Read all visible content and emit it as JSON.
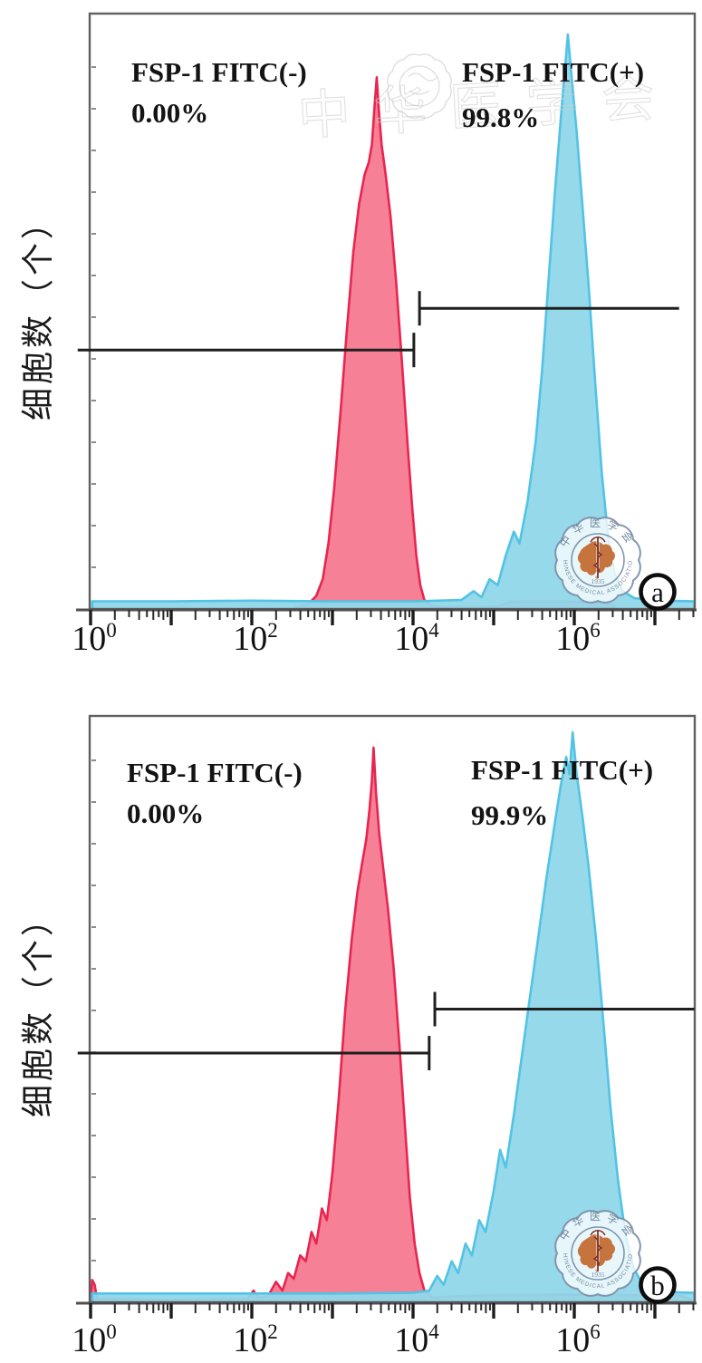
{
  "figure": {
    "background": "#ffffff"
  },
  "panels": [
    {
      "badge": "a",
      "neg_label": "FSP-1 FITC(-)",
      "neg_value": "0.00%",
      "pos_label": "FSP-1 FITC(+)",
      "pos_value": "99.8%",
      "y_axis_label": "细胞数（个）"
    },
    {
      "badge": "b",
      "neg_label": "FSP-1 FITC(-)",
      "neg_value": "0.00%",
      "pos_label": "FSP-1 FITC(+)",
      "pos_value": "99.9%",
      "y_axis_label": "细胞数（个）"
    }
  ],
  "axis": {
    "base": "10",
    "tick_exponents": [
      0,
      2,
      4,
      6
    ],
    "scale": "log10",
    "log_max": 7.49
  },
  "watermark": {
    "cn": "中华医学会",
    "en": "CHINESE MEDICAL ASSOCIATION",
    "year": "1935"
  },
  "colors": {
    "red_fill": "#F5798F",
    "red_stroke": "#E82550",
    "cyan_fill": "#8FD7EA",
    "cyan_stroke": "#52C3E4",
    "border": "#606060",
    "axis": "#4f4f4f",
    "gate": "#1f1f1f",
    "seal_ring": "#7E93AB",
    "seal_text": "#6F849B",
    "seal_map": "#C96F35",
    "seal_snake": "#7A2A1E",
    "faint": "#cfcfcf"
  },
  "chart_data": [
    {
      "type": "area",
      "panel": "a",
      "title": "",
      "xlabel": "",
      "ylabel": "细胞数（个）",
      "x_axis": {
        "scale": "log10",
        "tick_labels": [
          "10^0",
          "10^2",
          "10^4",
          "10^6"
        ],
        "range_log10": [
          0,
          7.49
        ]
      },
      "series": [
        {
          "key": "fsp1-fitc-negative",
          "name": "FSP-1 FITC(-)",
          "percent": "0.00%",
          "color_role": "red",
          "points": [
            [
              2.55,
              0.003
            ],
            [
              2.7,
              0.008
            ],
            [
              2.8,
              0.022
            ],
            [
              2.88,
              0.05
            ],
            [
              2.95,
              0.11
            ],
            [
              3.02,
              0.2
            ],
            [
              3.1,
              0.33
            ],
            [
              3.18,
              0.47
            ],
            [
              3.26,
              0.6
            ],
            [
              3.33,
              0.68
            ],
            [
              3.4,
              0.73
            ],
            [
              3.45,
              0.75
            ],
            [
              3.49,
              0.78
            ],
            [
              3.52,
              0.84
            ],
            [
              3.55,
              0.893
            ],
            [
              3.58,
              0.83
            ],
            [
              3.61,
              0.78
            ],
            [
              3.66,
              0.73
            ],
            [
              3.72,
              0.66
            ],
            [
              3.79,
              0.55
            ],
            [
              3.86,
              0.42
            ],
            [
              3.93,
              0.28
            ],
            [
              3.99,
              0.17
            ],
            [
              4.04,
              0.09
            ],
            [
              4.09,
              0.04
            ],
            [
              4.14,
              0.015
            ],
            [
              4.22,
              0.006
            ],
            [
              4.35,
              0.003
            ],
            [
              5.05,
              0.004
            ],
            [
              5.2,
              0.012
            ],
            [
              5.6,
              0.013
            ],
            [
              6.0,
              0.012
            ],
            [
              6.35,
              0.012
            ],
            [
              6.5,
              0.005
            ]
          ]
        },
        {
          "key": "fsp1-fitc-positive",
          "name": "FSP-1 FITC(+)",
          "percent": "99.8%",
          "color_role": "cyan",
          "points": [
            [
              0.02,
              0.013
            ],
            [
              1.0,
              0.013
            ],
            [
              2.0,
              0.014
            ],
            [
              3.0,
              0.013
            ],
            [
              4.0,
              0.013
            ],
            [
              4.6,
              0.015
            ],
            [
              4.75,
              0.03
            ],
            [
              4.85,
              0.02
            ],
            [
              4.95,
              0.05
            ],
            [
              5.05,
              0.04
            ],
            [
              5.15,
              0.09
            ],
            [
              5.25,
              0.13
            ],
            [
              5.32,
              0.11
            ],
            [
              5.42,
              0.18
            ],
            [
              5.52,
              0.28
            ],
            [
              5.6,
              0.4
            ],
            [
              5.68,
              0.55
            ],
            [
              5.76,
              0.7
            ],
            [
              5.83,
              0.82
            ],
            [
              5.88,
              0.9
            ],
            [
              5.92,
              0.965
            ],
            [
              5.97,
              0.89
            ],
            [
              6.03,
              0.8
            ],
            [
              6.1,
              0.68
            ],
            [
              6.18,
              0.54
            ],
            [
              6.26,
              0.38
            ],
            [
              6.34,
              0.23
            ],
            [
              6.42,
              0.12
            ],
            [
              6.5,
              0.06
            ],
            [
              6.6,
              0.03
            ],
            [
              6.75,
              0.018
            ],
            [
              7.1,
              0.014
            ],
            [
              7.49,
              0.013
            ]
          ]
        }
      ],
      "gates": [
        {
          "population": "FSP-1 FITC(-)",
          "x_log_range": [
            -0.16,
            4.01
          ],
          "y_frac": 0.435,
          "tick_end": "right"
        },
        {
          "population": "FSP-1 FITC(+)",
          "x_log_range": [
            4.08,
            7.3
          ],
          "y_frac": 0.505,
          "tick_end": "left"
        }
      ]
    },
    {
      "type": "area",
      "panel": "b",
      "title": "",
      "xlabel": "",
      "ylabel": "细胞数（个）",
      "x_axis": {
        "scale": "log10",
        "tick_labels": [
          "10^0",
          "10^2",
          "10^4",
          "10^6"
        ],
        "range_log10": [
          0,
          7.49
        ]
      },
      "series": [
        {
          "key": "fsp1-fitc-negative",
          "name": "FSP-1 FITC(-)",
          "percent": "0.00%",
          "color_role": "red",
          "points": [
            [
              0.0,
              0.006
            ],
            [
              0.02,
              0.038
            ],
            [
              0.05,
              0.03
            ],
            [
              0.08,
              0.006
            ],
            [
              1.0,
              0.004
            ],
            [
              1.95,
              0.006
            ],
            [
              2.02,
              0.02
            ],
            [
              2.08,
              0.008
            ],
            [
              2.2,
              0.01
            ],
            [
              2.3,
              0.035
            ],
            [
              2.38,
              0.02
            ],
            [
              2.45,
              0.05
            ],
            [
              2.52,
              0.04
            ],
            [
              2.6,
              0.08
            ],
            [
              2.67,
              0.07
            ],
            [
              2.74,
              0.12
            ],
            [
              2.8,
              0.1
            ],
            [
              2.87,
              0.16
            ],
            [
              2.93,
              0.14
            ],
            [
              3.0,
              0.22
            ],
            [
              3.08,
              0.35
            ],
            [
              3.16,
              0.5
            ],
            [
              3.24,
              0.62
            ],
            [
              3.31,
              0.7
            ],
            [
              3.37,
              0.75
            ],
            [
              3.42,
              0.79
            ],
            [
              3.46,
              0.84
            ],
            [
              3.49,
              0.89
            ],
            [
              3.51,
              0.946
            ],
            [
              3.54,
              0.87
            ],
            [
              3.58,
              0.8
            ],
            [
              3.63,
              0.74
            ],
            [
              3.69,
              0.67
            ],
            [
              3.76,
              0.57
            ],
            [
              3.83,
              0.44
            ],
            [
              3.9,
              0.3
            ],
            [
              3.96,
              0.18
            ],
            [
              4.02,
              0.1
            ],
            [
              4.08,
              0.05
            ],
            [
              4.14,
              0.02
            ],
            [
              4.25,
              0.008
            ],
            [
              4.5,
              0.01
            ],
            [
              5.0,
              0.012
            ],
            [
              6.0,
              0.013
            ],
            [
              7.0,
              0.012
            ],
            [
              7.3,
              0.012
            ],
            [
              7.45,
              0.005
            ]
          ]
        },
        {
          "key": "fsp1-fitc-positive",
          "name": "FSP-1 FITC(+)",
          "percent": "99.9%",
          "color_role": "cyan",
          "points": [
            [
              0.02,
              0.015
            ],
            [
              1.0,
              0.015
            ],
            [
              2.0,
              0.015
            ],
            [
              3.0,
              0.015
            ],
            [
              4.0,
              0.016
            ],
            [
              4.2,
              0.02
            ],
            [
              4.3,
              0.045
            ],
            [
              4.38,
              0.03
            ],
            [
              4.48,
              0.07
            ],
            [
              4.56,
              0.05
            ],
            [
              4.65,
              0.1
            ],
            [
              4.73,
              0.08
            ],
            [
              4.82,
              0.14
            ],
            [
              4.9,
              0.12
            ],
            [
              5.0,
              0.19
            ],
            [
              5.08,
              0.26
            ],
            [
              5.15,
              0.23
            ],
            [
              5.25,
              0.32
            ],
            [
              5.35,
              0.42
            ],
            [
              5.45,
              0.52
            ],
            [
              5.55,
              0.62
            ],
            [
              5.65,
              0.72
            ],
            [
              5.75,
              0.81
            ],
            [
              5.83,
              0.88
            ],
            [
              5.9,
              0.93
            ],
            [
              5.94,
              0.9
            ],
            [
              5.98,
              0.972
            ],
            [
              6.03,
              0.9
            ],
            [
              6.1,
              0.83
            ],
            [
              6.18,
              0.74
            ],
            [
              6.27,
              0.62
            ],
            [
              6.36,
              0.48
            ],
            [
              6.45,
              0.33
            ],
            [
              6.54,
              0.21
            ],
            [
              6.63,
              0.12
            ],
            [
              6.73,
              0.06
            ],
            [
              6.85,
              0.03
            ],
            [
              7.05,
              0.02
            ],
            [
              7.3,
              0.017
            ],
            [
              7.49,
              0.016
            ]
          ]
        }
      ],
      "gates": [
        {
          "population": "FSP-1 FITC(-)",
          "x_log_range": [
            -0.16,
            4.2
          ],
          "y_frac": 0.425,
          "tick_end": "right"
        },
        {
          "population": "FSP-1 FITC(+)",
          "x_log_range": [
            4.27,
            7.49
          ],
          "y_frac": 0.5,
          "tick_end": "left"
        }
      ]
    }
  ]
}
